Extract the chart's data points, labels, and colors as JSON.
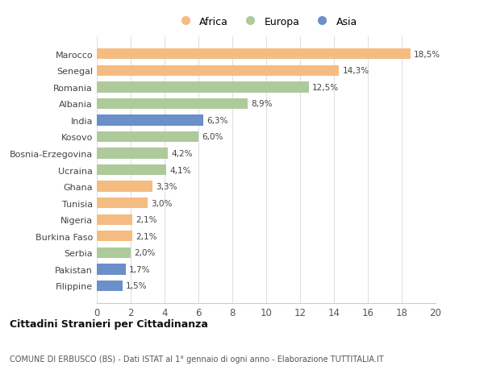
{
  "countries": [
    "Marocco",
    "Senegal",
    "Romania",
    "Albania",
    "India",
    "Kosovo",
    "Bosnia-Erzegovina",
    "Ucraina",
    "Ghana",
    "Tunisia",
    "Nigeria",
    "Burkina Faso",
    "Serbia",
    "Pakistan",
    "Filippine"
  ],
  "values": [
    18.5,
    14.3,
    12.5,
    8.9,
    6.3,
    6.0,
    4.2,
    4.1,
    3.3,
    3.0,
    2.1,
    2.1,
    2.0,
    1.7,
    1.5
  ],
  "labels": [
    "18,5%",
    "14,3%",
    "12,5%",
    "8,9%",
    "6,3%",
    "6,0%",
    "4,2%",
    "4,1%",
    "3,3%",
    "3,0%",
    "2,1%",
    "2,1%",
    "2,0%",
    "1,7%",
    "1,5%"
  ],
  "continents": [
    "Africa",
    "Africa",
    "Europa",
    "Europa",
    "Asia",
    "Europa",
    "Europa",
    "Europa",
    "Africa",
    "Africa",
    "Africa",
    "Africa",
    "Europa",
    "Asia",
    "Asia"
  ],
  "colors": {
    "Africa": "#F5BC82",
    "Europa": "#AECA9A",
    "Asia": "#6B8FC9"
  },
  "africa_color": "#F5BC82",
  "europa_color": "#AECA9A",
  "asia_color": "#6B8FC9",
  "xlim": [
    0,
    20
  ],
  "xticks": [
    0,
    2,
    4,
    6,
    8,
    10,
    12,
    14,
    16,
    18,
    20
  ],
  "title": "Cittadini Stranieri per Cittadinanza",
  "subtitle": "COMUNE DI ERBUSCO (BS) - Dati ISTAT al 1° gennaio di ogni anno - Elaborazione TUTTITALIA.IT",
  "background_color": "#ffffff",
  "plot_background": "#ffffff",
  "grid_color": "#e0e0e0",
  "bar_height": 0.65
}
